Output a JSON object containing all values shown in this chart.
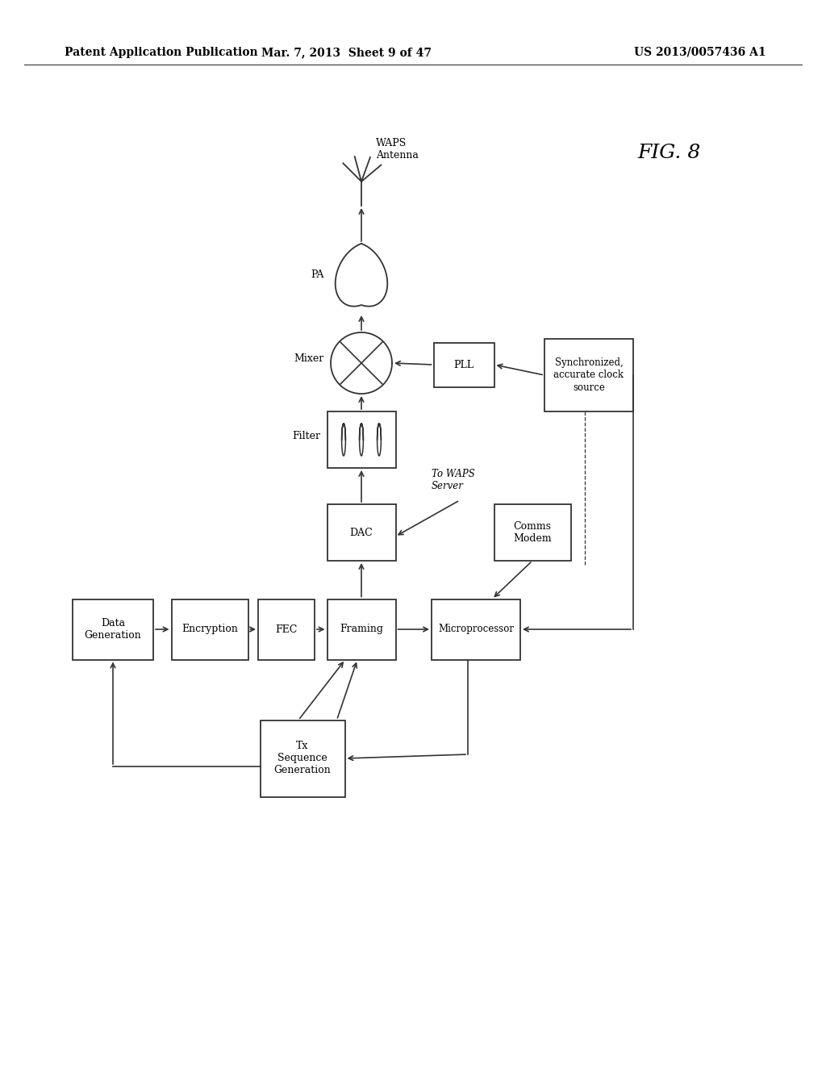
{
  "bg_color": "#ffffff",
  "header_left": "Patent Application Publication",
  "header_mid": "Mar. 7, 2013  Sheet 9 of 47",
  "header_right": "US 2013/0057436 A1",
  "fig_label": "FIG. 8"
}
